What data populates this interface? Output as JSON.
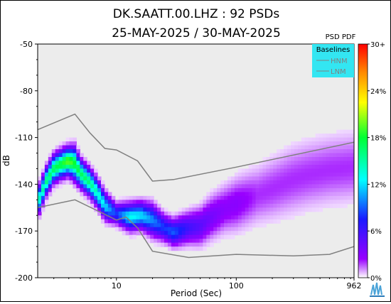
{
  "chart_data": {
    "type": "heatmap",
    "title": "DK.SAATT.00.LHZ : 92 PSDs",
    "subtitle": "25-MAY-2025 / 30-MAY-2025",
    "xlabel": "Period (Sec)",
    "ylabel": "dB",
    "x_scale": "log",
    "xlim": [
      2.2,
      962
    ],
    "ylim": [
      -200,
      -50
    ],
    "x_ticks": [
      10,
      100,
      962
    ],
    "y_ticks": [
      -50,
      -80,
      -110,
      -140,
      -170,
      -200
    ],
    "grid": false,
    "legend_placement": "top-right",
    "legend": {
      "title": "Baselines",
      "entries": [
        "HNM",
        "LNM"
      ],
      "background": "#33e6f2"
    },
    "colorbar": {
      "title": "PSD PDF",
      "tick_labels": [
        "30+",
        "24%",
        "18%",
        "12%",
        "6%",
        "0%"
      ],
      "colors": [
        "#ff0000",
        "#ff9900",
        "#ffff00",
        "#00ff00",
        "#00ffff",
        "#0000ff",
        "#8800ff",
        "#ffffff"
      ]
    },
    "baselines": [
      {
        "name": "HNM",
        "color": "#808080",
        "x": [
          2.2,
          4.5,
          6,
          8,
          10,
          15,
          20,
          30,
          100,
          962
        ],
        "y": [
          -105,
          -95,
          -107,
          -117,
          -118,
          -125,
          -138,
          -137,
          -129,
          -113
        ]
      },
      {
        "name": "LNM",
        "color": "#808080",
        "x": [
          2.2,
          4.5,
          10,
          12,
          15,
          20,
          40,
          100,
          300,
          600,
          962
        ],
        "y": [
          -155,
          -150,
          -163,
          -161,
          -168,
          -183,
          -187,
          -185,
          -186,
          -185,
          -180
        ]
      }
    ],
    "density_band": {
      "x": [
        2.2,
        2.6,
        3,
        3.5,
        4,
        4.5,
        5,
        6,
        7,
        8,
        10,
        13,
        16,
        20,
        25,
        30,
        40,
        50,
        60,
        80,
        100,
        150,
        200,
        300,
        400,
        600,
        962
      ],
      "mode_y": [
        -152,
        -138,
        -130,
        -127,
        -125,
        -127,
        -133,
        -139,
        -146,
        -154,
        -159,
        -161,
        -160,
        -163,
        -168,
        -171,
        -168,
        -167,
        -162,
        -156,
        -153,
        -147,
        -143,
        -137,
        -134,
        -131,
        -129
      ],
      "spread": [
        5,
        5,
        5,
        5,
        5,
        6,
        5,
        5,
        5,
        5,
        4,
        5,
        5,
        6,
        5,
        5,
        6,
        7,
        8,
        9,
        10,
        11,
        12,
        13,
        13,
        13,
        13
      ],
      "peak_percent": [
        14,
        16,
        17,
        18,
        20,
        18,
        17,
        16,
        14,
        12,
        8,
        13,
        12,
        10,
        8,
        9,
        6,
        5,
        4,
        3,
        3,
        2,
        2,
        2,
        2,
        2,
        2
      ]
    }
  }
}
